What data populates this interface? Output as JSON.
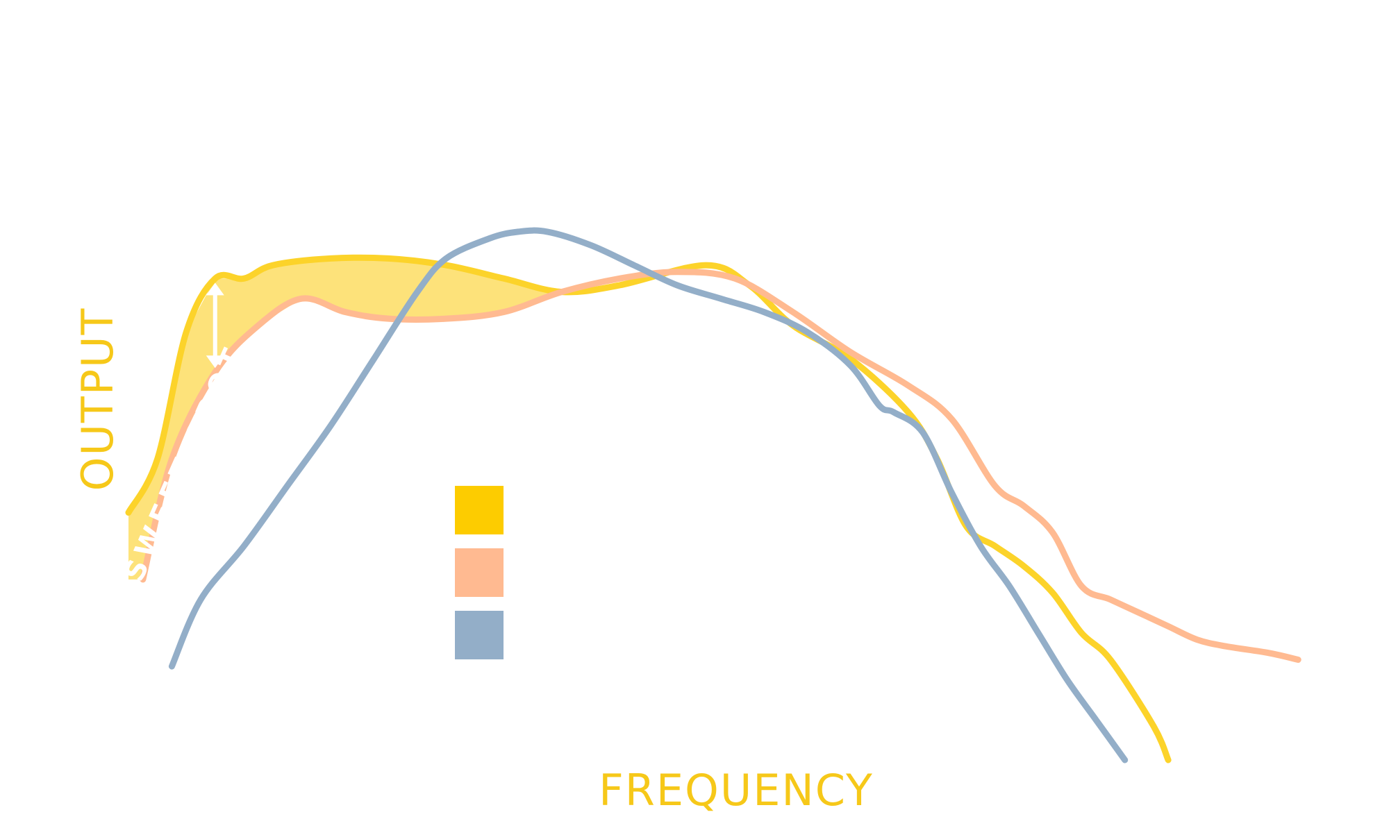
{
  "chart_data": {
    "type": "line",
    "title": "",
    "xlabel": "FREQUENCY",
    "ylabel": "OUTPUT",
    "grid": false,
    "annotation": {
      "text": "SWEET SPOT",
      "between_series": [
        0,
        1
      ],
      "marker_x": 6
    },
    "legend": {
      "placement": "center",
      "entries": [
        {
          "color": "#fdcc00",
          "label": ""
        },
        {
          "color": "#ffba91",
          "label": ""
        },
        {
          "color": "#93aec8",
          "label": ""
        }
      ]
    },
    "series": [
      {
        "color": "#fcd32a",
        "points": [
          [
            0,
            37
          ],
          [
            2,
            45
          ],
          [
            4,
            64
          ],
          [
            6,
            72
          ],
          [
            8,
            72
          ],
          [
            10,
            74
          ],
          [
            14,
            75
          ],
          [
            18,
            75
          ],
          [
            22,
            74
          ],
          [
            26,
            72
          ],
          [
            30,
            70
          ],
          [
            34,
            71
          ],
          [
            40,
            74
          ],
          [
            43,
            71
          ],
          [
            46,
            65
          ],
          [
            50,
            60
          ],
          [
            54,
            52
          ],
          [
            56,
            45
          ],
          [
            58,
            35
          ],
          [
            60,
            32
          ],
          [
            62,
            29
          ],
          [
            64,
            25
          ],
          [
            66,
            19
          ],
          [
            68,
            15
          ],
          [
            71,
            5
          ],
          [
            72,
            0
          ]
        ]
      },
      {
        "color": "#ffba91",
        "points": [
          [
            1,
            27
          ],
          [
            3,
            45
          ],
          [
            6,
            58
          ],
          [
            9,
            65
          ],
          [
            12,
            69
          ],
          [
            15,
            67
          ],
          [
            18,
            66
          ],
          [
            22,
            66
          ],
          [
            26,
            67
          ],
          [
            30,
            70
          ],
          [
            34,
            72
          ],
          [
            38,
            73
          ],
          [
            42,
            72
          ],
          [
            46,
            67
          ],
          [
            50,
            61
          ],
          [
            54,
            56
          ],
          [
            57,
            51
          ],
          [
            60,
            41
          ],
          [
            62,
            38
          ],
          [
            64,
            34
          ],
          [
            66,
            26
          ],
          [
            68,
            24
          ],
          [
            70,
            22
          ],
          [
            72,
            20
          ],
          [
            74,
            18
          ],
          [
            76,
            17
          ],
          [
            79,
            16
          ],
          [
            81,
            15
          ]
        ]
      },
      {
        "color": "#93aec8",
        "points": [
          [
            3,
            14
          ],
          [
            5,
            24
          ],
          [
            8,
            32
          ],
          [
            11,
            41
          ],
          [
            14,
            50
          ],
          [
            17,
            60
          ],
          [
            20,
            70
          ],
          [
            22,
            75
          ],
          [
            25,
            78
          ],
          [
            27,
            79
          ],
          [
            29,
            79
          ],
          [
            32,
            77
          ],
          [
            35,
            74
          ],
          [
            38,
            71
          ],
          [
            41,
            69
          ],
          [
            44,
            67
          ],
          [
            47,
            64
          ],
          [
            50,
            59
          ],
          [
            52,
            53
          ],
          [
            53,
            52
          ],
          [
            55,
            49
          ],
          [
            57,
            40
          ],
          [
            59,
            32
          ],
          [
            61,
            26
          ],
          [
            63,
            19
          ],
          [
            65,
            12
          ],
          [
            67,
            6
          ],
          [
            69,
            0
          ]
        ]
      }
    ]
  }
}
